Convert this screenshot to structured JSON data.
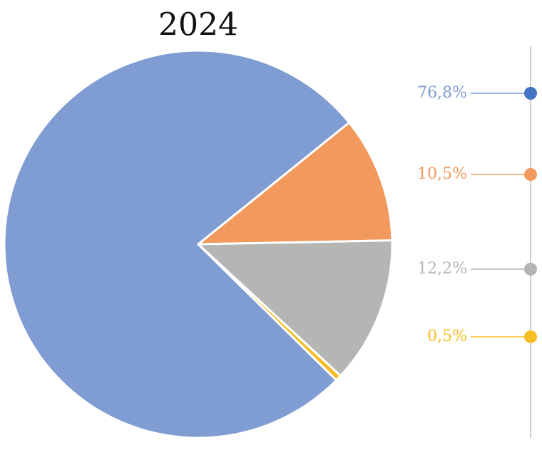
{
  "chart_data": {
    "type": "pie",
    "title": "2024",
    "values": [
      76.8,
      10.5,
      12.2,
      0.5
    ],
    "value_labels": [
      "76,8%",
      "10,5%",
      "12,2%",
      "0,5%"
    ],
    "colors": [
      "#7f9dd2",
      "#f2995d",
      "#b5b5b4",
      "#f7bd25"
    ]
  }
}
